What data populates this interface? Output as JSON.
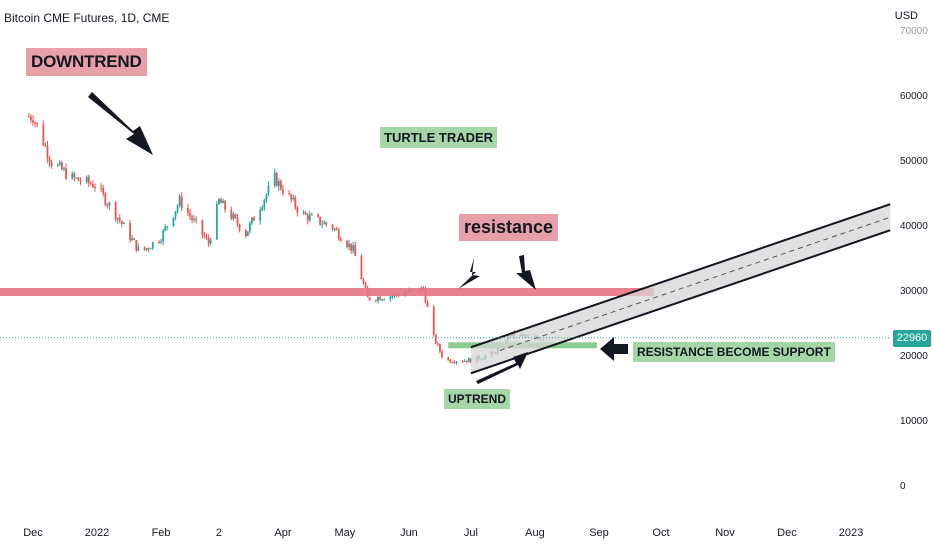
{
  "title": "Bitcoin CME Futures, 1D, CME",
  "currency": "USD",
  "price_badge": "22960",
  "annotations": {
    "downtrend": "DOWNTREND",
    "turtle": "TURTLE TRADER",
    "resistance": "resistance",
    "support": "RESISTANCE BECOME SUPPORT",
    "uptrend": "UPTREND"
  },
  "colors": {
    "bull": "#26a69a",
    "bear": "#ef5350",
    "resistance_line": "#e57383",
    "support_line": "#81c784",
    "channel_fill": "#d6d6d6",
    "channel_stroke": "#131722"
  },
  "chart_data": {
    "type": "candlestick",
    "title": "Bitcoin CME Futures, 1D, CME",
    "ylabel": "USD",
    "ylim": [
      0,
      70000
    ],
    "y_ticks": [
      "70000",
      "60000",
      "50000",
      "40000",
      "30000",
      "20000",
      "10000",
      "0"
    ],
    "x_ticks": [
      "Dec",
      "2022",
      "Feb",
      "2",
      "Apr",
      "May",
      "Jun",
      "Jul",
      "Aug",
      "Sep",
      "Oct",
      "Nov",
      "Dec",
      "2023"
    ],
    "last_price": 22960,
    "resistance_level": 30000,
    "support_level": 21800,
    "price_path": [
      [
        "2021-12-01",
        57000
      ],
      [
        "2021-12-10",
        50000
      ],
      [
        "2021-12-20",
        47500
      ],
      [
        "2021-12-31",
        46500
      ],
      [
        "2022-01-10",
        42000
      ],
      [
        "2022-01-22",
        36000
      ],
      [
        "2022-02-01",
        38500
      ],
      [
        "2022-02-10",
        44000
      ],
      [
        "2022-02-24",
        37500
      ],
      [
        "2022-03-01",
        44000
      ],
      [
        "2022-03-14",
        39000
      ],
      [
        "2022-03-28",
        47500
      ],
      [
        "2022-04-10",
        42000
      ],
      [
        "2022-04-25",
        40000
      ],
      [
        "2022-05-05",
        36500
      ],
      [
        "2022-05-12",
        29000
      ],
      [
        "2022-05-25",
        29500
      ],
      [
        "2022-06-08",
        30500
      ],
      [
        "2022-06-13",
        23000
      ],
      [
        "2022-06-18",
        19500
      ],
      [
        "2022-07-01",
        19500
      ],
      [
        "2022-07-12",
        20500
      ],
      [
        "2022-07-20",
        23500
      ],
      [
        "2022-07-30",
        23000
      ],
      [
        "2022-08-05",
        22960
      ]
    ],
    "channel_upper": [
      [
        "2022-07-01",
        21500
      ],
      [
        "2023-01-20",
        43500
      ]
    ],
    "channel_lower": [
      [
        "2022-07-01",
        17500
      ],
      [
        "2023-01-20",
        39500
      ]
    ],
    "channel_mid_dashed": [
      [
        "2022-07-15",
        21000
      ],
      [
        "2023-01-20",
        41500
      ]
    ]
  }
}
